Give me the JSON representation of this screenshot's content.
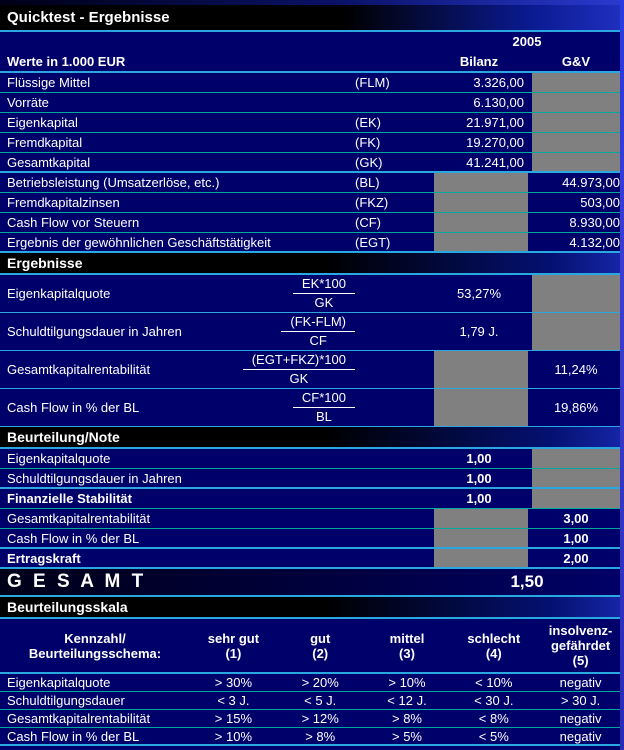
{
  "title": "Quicktest - Ergebnisse",
  "header": {
    "year": "2005",
    "unit_label": "Werte in 1.000 EUR",
    "col_bilanz": "Bilanz",
    "col_gv": "G&V"
  },
  "input_rows": [
    {
      "label": "Flüssige Mittel",
      "code": "(FLM)",
      "bilanz": "3.326,00",
      "gv": null
    },
    {
      "label": "Vorräte",
      "code": "",
      "bilanz": "6.130,00",
      "gv": null
    },
    {
      "label": "Eigenkapital",
      "code": "(EK)",
      "bilanz": "21.971,00",
      "gv": null
    },
    {
      "label": "Fremdkapital",
      "code": "(FK)",
      "bilanz": "19.270,00",
      "gv": null
    },
    {
      "label": "Gesamtkapital",
      "code": "(GK)",
      "bilanz": "41.241,00",
      "gv": null
    },
    {
      "label": "Betriebsleistung (Umsatzerlöse, etc.)",
      "code": "(BL)",
      "bilanz": null,
      "gv": "44.973,00"
    },
    {
      "label": "Fremdkapitalzinsen",
      "code": "(FKZ)",
      "bilanz": null,
      "gv": "503,00"
    },
    {
      "label": "Cash Flow vor Steuern",
      "code": "(CF)",
      "bilanz": null,
      "gv": "8.930,00"
    },
    {
      "label": "Ergebnis der gewöhnlichen Geschäftstätigkeit",
      "code": "(EGT)",
      "bilanz": null,
      "gv": "4.132,00"
    }
  ],
  "section_ergebnisse": "Ergebnisse",
  "ratio_rows": [
    {
      "label": "Eigenkapitalquote",
      "numerator": "EK*100",
      "denominator": "GK",
      "bilanz": "53,27%",
      "gv": null
    },
    {
      "label": "Schuldtilgungsdauer in Jahren",
      "numerator": "(FK-FLM)",
      "denominator": "CF",
      "bilanz": "1,79 J.",
      "gv": null
    },
    {
      "label": "Gesamtkapitalrentabilität",
      "numerator": "(EGT+FKZ)*100",
      "denominator": "GK",
      "bilanz": null,
      "gv": "11,24%"
    },
    {
      "label": "Cash Flow in % der BL",
      "numerator": "CF*100",
      "denominator": "BL",
      "bilanz": null,
      "gv": "19,86%"
    }
  ],
  "section_beurteilung": "Beurteilung/Note",
  "note_rows": [
    {
      "label": "Eigenkapitalquote",
      "bold": false,
      "bilanz": "1,00",
      "gv": null
    },
    {
      "label": "Schuldtilgungsdauer in Jahren",
      "bold": false,
      "bilanz": "1,00",
      "gv": null
    },
    {
      "label": "Finanzielle Stabilität",
      "bold": true,
      "bilanz": "1,00",
      "gv": null
    },
    {
      "label": "Gesamtkapitalrentabilität",
      "bold": false,
      "bilanz": null,
      "gv": "3,00"
    },
    {
      "label": "Cash Flow in % der BL",
      "bold": false,
      "bilanz": null,
      "gv": "1,00"
    },
    {
      "label": "Ertragskraft",
      "bold": true,
      "bilanz": null,
      "gv": "2,00"
    }
  ],
  "gesamt": {
    "label": "G E S A M T",
    "value": "1,50"
  },
  "section_skala": "Beurteilungsskala",
  "scale_table": {
    "header": [
      {
        "lines": [
          "Kennzahl/",
          "Beurteilungsschema:"
        ]
      },
      {
        "lines": [
          "sehr gut",
          "(1)"
        ]
      },
      {
        "lines": [
          "gut",
          "(2)"
        ]
      },
      {
        "lines": [
          "mittel",
          "(3)"
        ]
      },
      {
        "lines": [
          "schlecht",
          "(4)"
        ]
      },
      {
        "lines": [
          "insolvenz-",
          "gefährdet",
          "(5)"
        ]
      }
    ],
    "rows": [
      [
        "Eigenkapitalquote",
        "> 30%",
        "> 20%",
        "> 10%",
        "< 10%",
        "negativ"
      ],
      [
        "Schuldtilgungsdauer",
        "< 3 J.",
        "< 5 J.",
        "< 12 J.",
        "< 30 J.",
        "> 30 J."
      ],
      [
        "Gesamtkapitalrentabilität",
        "> 15%",
        "> 12%",
        "> 8%",
        "< 8%",
        "negativ"
      ],
      [
        "Cash Flow in % der BL",
        "> 10%",
        "> 8%",
        "> 5%",
        "< 5%",
        "negativ"
      ]
    ]
  },
  "colors": {
    "background_navy": "#00006a",
    "section_bar_black": "#000000",
    "grid_teal": "#00a8a0",
    "accent_cyan": "#2aa7e0",
    "disabled_gray": "#808080",
    "text_white": "#ffffff",
    "edge_blue": "#2a3ad0"
  }
}
